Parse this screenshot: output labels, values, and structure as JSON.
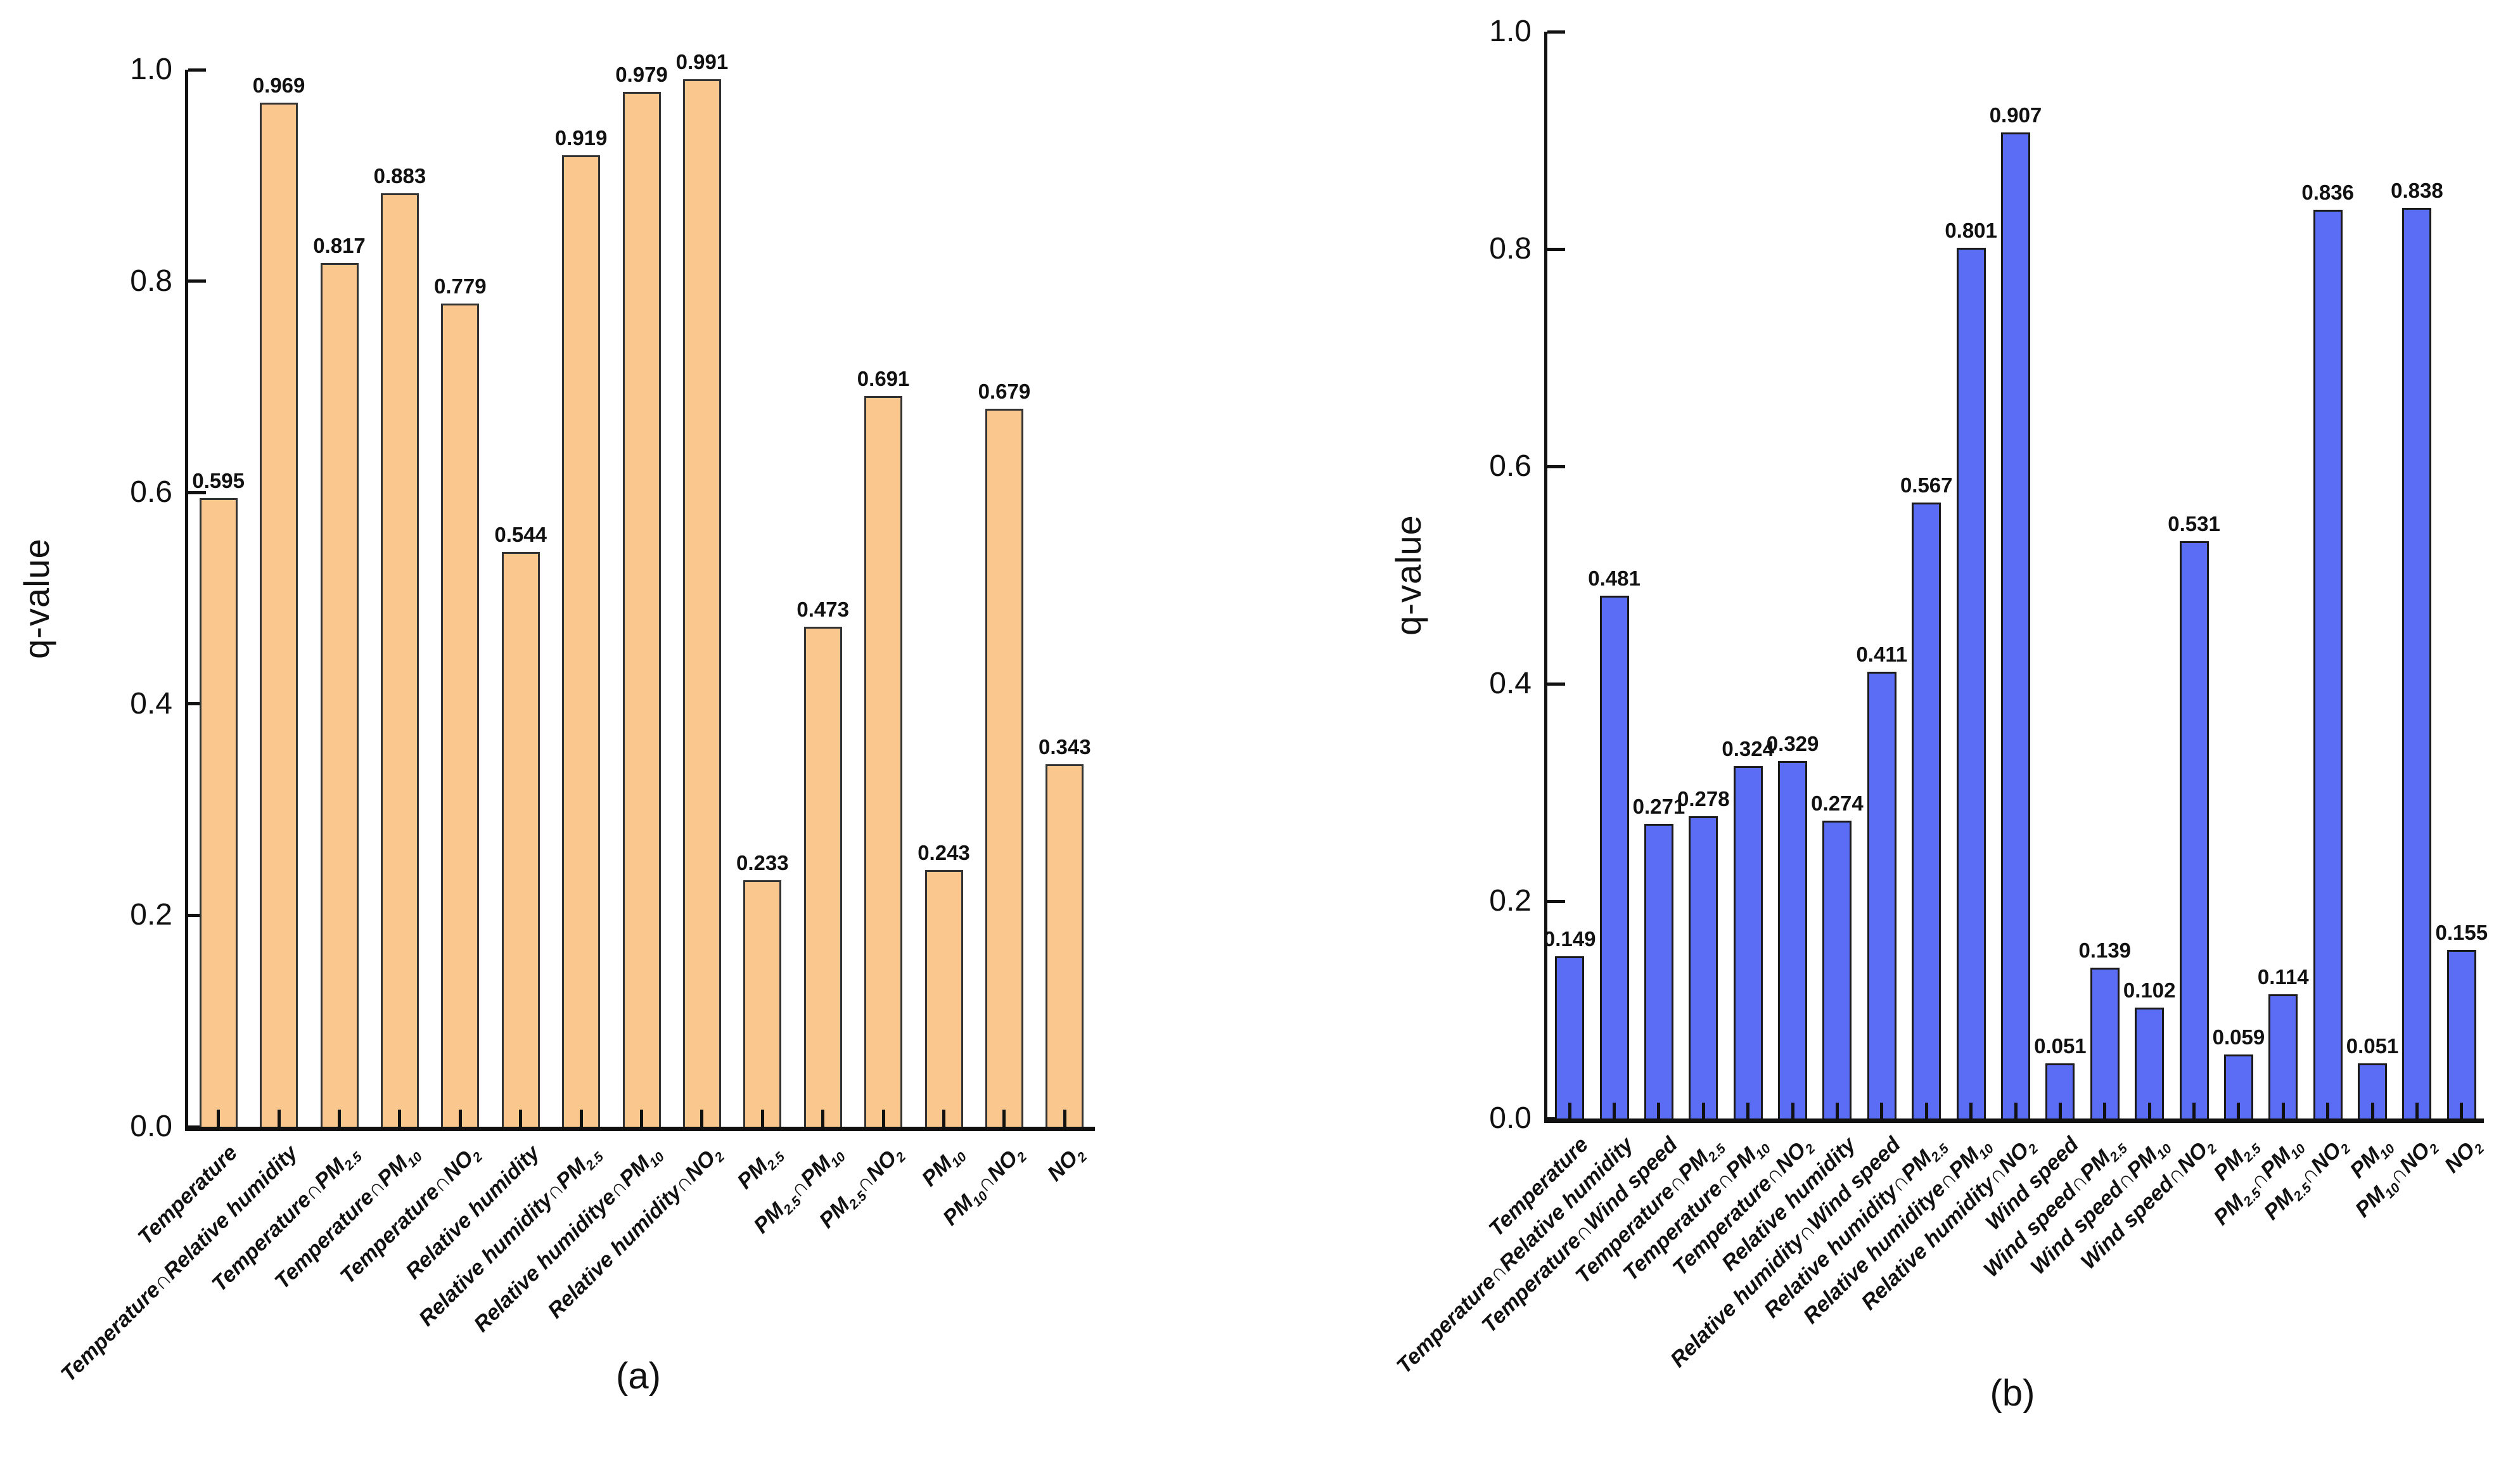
{
  "figure": {
    "background": "#ffffff",
    "axis_color": "#111111"
  },
  "chart_data": [
    {
      "type": "bar",
      "panel": "a",
      "caption": "(a)",
      "ylabel": "q-value",
      "xlabel": "",
      "ylim": [
        0.0,
        1.0
      ],
      "yticks": [
        "0.0",
        "0.2",
        "0.4",
        "0.6",
        "0.8",
        "1.0"
      ],
      "grid": false,
      "legend": "none",
      "bar_fill": "#FAC78F",
      "bar_edge": "#333333",
      "categories": [
        "Temperature",
        "Temperature∩Relative humidity",
        "Temperature∩PM2.5",
        "Temperature∩PM10",
        "Temperature∩NO2",
        "Relative humidity",
        "Relative humidity∩PM2.5",
        "Relative humiditye∩PM10",
        "Relative humidity∩NO2",
        "PM2.5",
        "PM2.5∩PM10",
        "PM2.5∩NO2",
        "PM10",
        "PM10∩NO2",
        "NO2"
      ],
      "values": [
        0.595,
        0.969,
        0.817,
        0.883,
        0.779,
        0.544,
        0.919,
        0.979,
        0.991,
        0.233,
        0.473,
        0.691,
        0.243,
        0.679,
        0.343
      ],
      "value_labels": [
        "0.595",
        "0.969",
        "0.817",
        "0.883",
        "0.779",
        "0.544",
        "0.919",
        "0.979",
        "0.991",
        "0.233",
        "0.473",
        "0.691",
        "0.243",
        "0.679",
        "0.343"
      ]
    },
    {
      "type": "bar",
      "panel": "b",
      "caption": "(b)",
      "ylabel": "q-value",
      "xlabel": "",
      "ylim": [
        0.0,
        1.0
      ],
      "yticks": [
        "0.0",
        "0.2",
        "0.4",
        "0.6",
        "0.8",
        "1.0"
      ],
      "grid": false,
      "legend": "none",
      "bar_fill": "#5B6CF5",
      "bar_edge": "#1a1a1a",
      "categories": [
        "Temperature",
        "Temperature∩Relative humidity",
        "Temperature∩Wind speed",
        "Temperature∩PM2.5",
        "Temperature∩PM10",
        "Temperature∩NO2",
        "Relative humidity",
        "Relative humidity∩Wind speed",
        "Relative humidity∩PM2.5",
        "Relative humiditye∩PM10",
        "Relative humidity∩NO2",
        "Wind speed",
        "Wind speed∩PM2.5",
        "Wind speed∩PM10",
        "Wind speed∩NO2",
        "PM2.5",
        "PM2.5∩PM10",
        "PM2.5∩NO2",
        "PM10",
        "PM10∩NO2",
        "NO2"
      ],
      "values": [
        0.149,
        0.481,
        0.271,
        0.278,
        0.324,
        0.329,
        0.274,
        0.411,
        0.567,
        0.801,
        0.907,
        0.051,
        0.139,
        0.102,
        0.531,
        0.059,
        0.114,
        0.836,
        0.051,
        0.838,
        0.155
      ],
      "value_labels": [
        "0.149",
        "0.481",
        "0.271",
        "0.278",
        "0.324",
        "0.329",
        "0.274",
        "0.411",
        "0.567",
        "0.801",
        "0.907",
        "0.051",
        "0.139",
        "0.102",
        "0.531",
        "0.059",
        "0.114",
        "0.836",
        "0.051",
        "0.838",
        "0.155"
      ]
    }
  ]
}
